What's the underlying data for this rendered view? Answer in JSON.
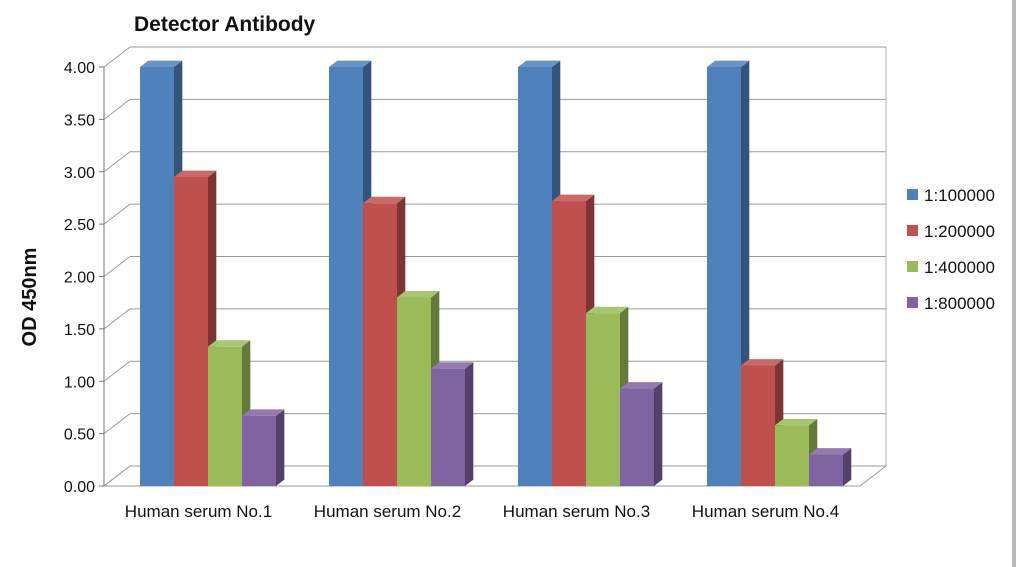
{
  "chart_data": {
    "type": "bar",
    "style": "3d-clustered-column",
    "title": "Detector Antibody",
    "ylabel": "OD 450nm",
    "xlabel": "",
    "ylim": [
      0,
      4.0
    ],
    "yticks": [
      "0.00",
      "0.50",
      "1.00",
      "1.50",
      "2.00",
      "2.50",
      "3.00",
      "3.50",
      "4.00"
    ],
    "grid": true,
    "legend_position": "right",
    "categories": [
      "Human serum No.1",
      "Human serum No.2",
      "Human serum No.3",
      "Human serum No.4"
    ],
    "series": [
      {
        "name": "1:100000",
        "color": "#4F81BD",
        "values": [
          4.0,
          4.0,
          4.0,
          4.0
        ]
      },
      {
        "name": "1:200000",
        "color": "#C0504D",
        "values": [
          2.95,
          2.7,
          2.72,
          1.15
        ]
      },
      {
        "name": "1:400000",
        "color": "#9BBB59",
        "values": [
          1.33,
          1.8,
          1.65,
          0.58
        ]
      },
      {
        "name": "1:800000",
        "color": "#8064A2",
        "values": [
          0.67,
          1.12,
          0.93,
          0.3
        ]
      }
    ]
  }
}
